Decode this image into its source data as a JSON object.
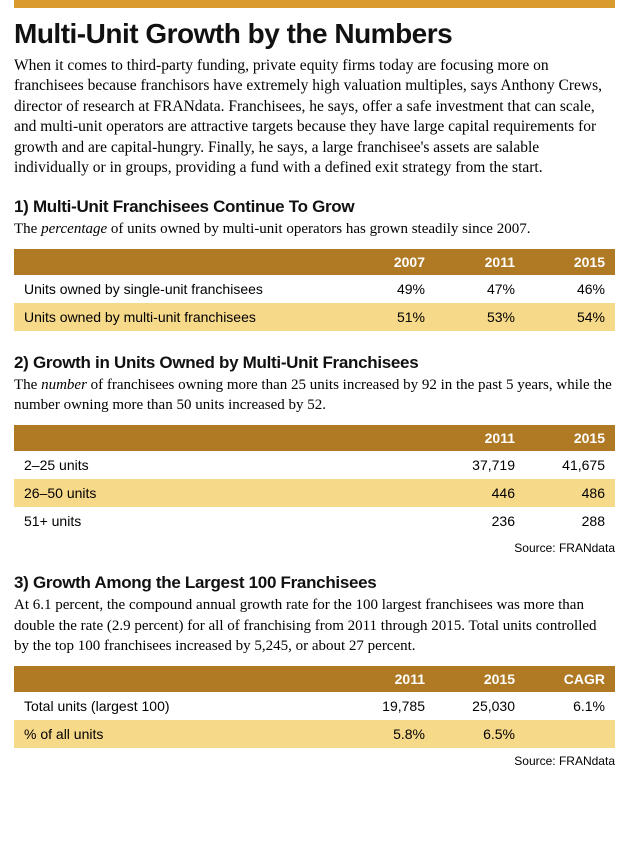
{
  "page": {
    "title": "Multi-Unit Growth by the Numbers",
    "intro": "When it comes to third-party funding, private equity firms today are focusing more on franchisees because franchisors have extremely high valuation multiples, says Anthony Crews, director of research at FRANdata. Franchisees, he says, offer a safe investment that can scale, and multi-unit operators are attractive targets because they have large capital requirements for growth and are capital-hungry. Finally, he says, a large franchisee's assets are salable individually or in groups, providing a fund with a defined exit strategy from the start.",
    "top_bar_color": "#d99a2e",
    "header_row_color": "#b07a25",
    "shade_row_color": "#f7d98a"
  },
  "section1": {
    "heading": "1) Multi-Unit Franchisees Continue To Grow",
    "intro_pre": "The ",
    "intro_emph": "percentage",
    "intro_post": " of units owned by multi-unit operators has grown steadily since 2007.",
    "columns": [
      "",
      "2007",
      "2011",
      "2015"
    ],
    "rows": [
      {
        "label": "Units owned by single-unit franchisees",
        "vals": [
          "49%",
          "47%",
          "46%"
        ],
        "shade": false
      },
      {
        "label": "Units owned by multi-unit franchisees",
        "vals": [
          "51%",
          "53%",
          "54%"
        ],
        "shade": true
      }
    ]
  },
  "section2": {
    "heading": "2) Growth in Units Owned by Multi-Unit Franchisees",
    "intro_pre": "The ",
    "intro_emph": "number",
    "intro_post": " of franchisees owning more than 25 units increased by 92 in the past 5 years, while the number owning more than 50 units increased by 52.",
    "columns": [
      "",
      "2011",
      "2015"
    ],
    "rows": [
      {
        "label": "2–25 units",
        "vals": [
          "37,719",
          "41,675"
        ],
        "shade": false
      },
      {
        "label": "26–50 units",
        "vals": [
          "446",
          "486"
        ],
        "shade": true
      },
      {
        "label": "51+ units",
        "vals": [
          "236",
          "288"
        ],
        "shade": false
      }
    ],
    "source": "Source: FRANdata"
  },
  "section3": {
    "heading": "3) Growth Among the Largest 100 Franchisees",
    "intro": "At 6.1 percent, the compound annual growth rate for the 100 largest franchisees was more than double the rate (2.9 percent) for all of franchising from 2011 through 2015. Total units controlled by the top 100 franchisees increased by 5,245, or about 27 percent.",
    "columns": [
      "",
      "2011",
      "2015",
      "CAGR"
    ],
    "rows": [
      {
        "label": "Total units (largest 100)",
        "vals": [
          "19,785",
          "25,030",
          "6.1%"
        ],
        "shade": false
      },
      {
        "label": "% of all units",
        "vals": [
          "5.8%",
          "6.5%",
          ""
        ],
        "shade": true
      }
    ],
    "source": "Source: FRANdata"
  }
}
